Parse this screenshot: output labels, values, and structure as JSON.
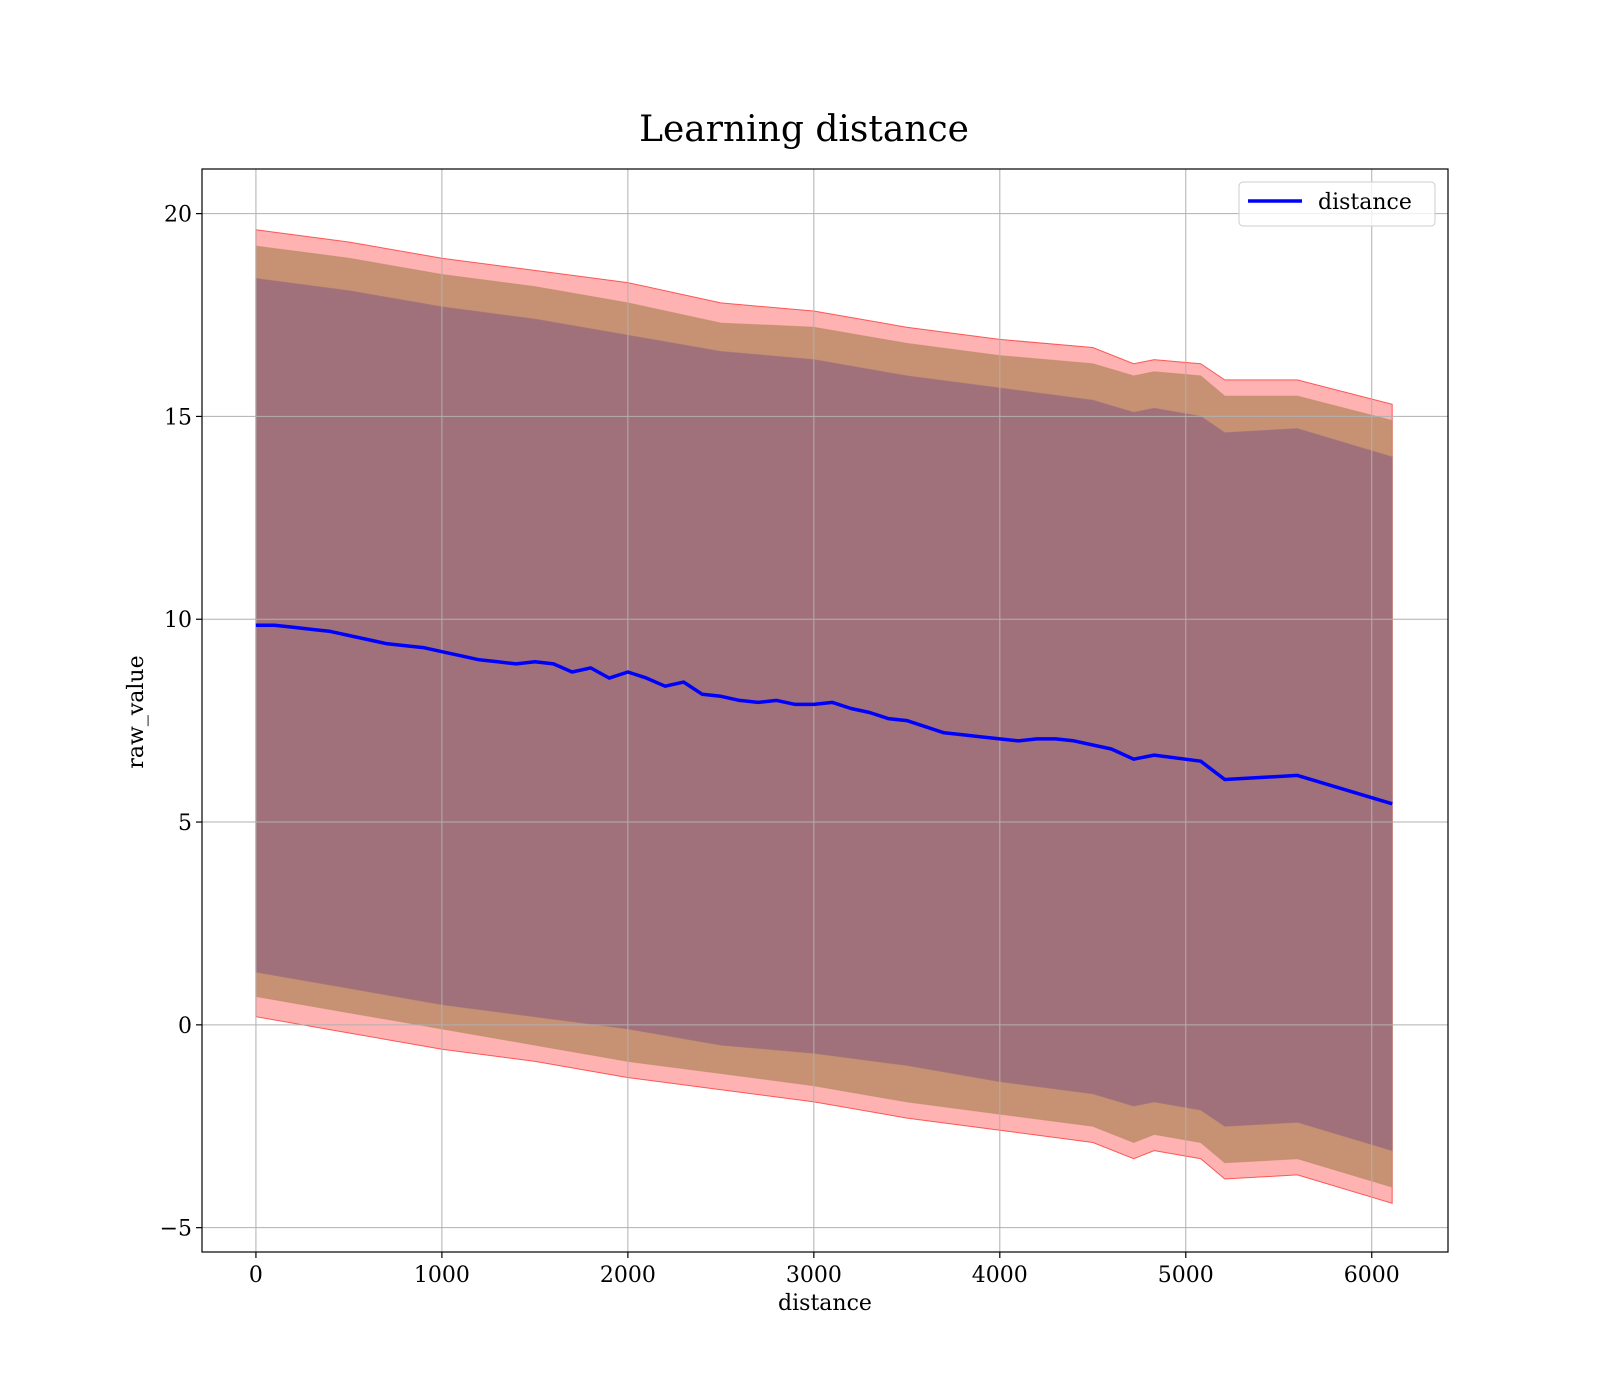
{
  "chart_data": {
    "type": "line",
    "title": "Learning distance",
    "xlabel": "distance",
    "ylabel": "raw_value",
    "xlim": [
      -290,
      6410
    ],
    "ylim": [
      -5.6,
      21.1
    ],
    "xticks": [
      0,
      1000,
      2000,
      3000,
      4000,
      5000,
      6000
    ],
    "yticks": [
      -5,
      0,
      5,
      10,
      15,
      20
    ],
    "grid": true,
    "legend_position": "top-right",
    "legend": [
      {
        "label": "distance",
        "color": "#0000ff"
      }
    ],
    "series": [
      {
        "name": "distance",
        "color": "#0000ff",
        "x": [
          0,
          100,
          200,
          300,
          400,
          500,
          600,
          700,
          800,
          900,
          1000,
          1100,
          1200,
          1300,
          1400,
          1500,
          1600,
          1700,
          1800,
          1900,
          2000,
          2100,
          2200,
          2300,
          2400,
          2500,
          2600,
          2700,
          2800,
          2900,
          3000,
          3100,
          3200,
          3300,
          3400,
          3500,
          3600,
          3700,
          3800,
          3900,
          4000,
          4100,
          4200,
          4300,
          4400,
          4500,
          4600,
          4720,
          4830,
          5080,
          5210,
          5600,
          6110
        ],
        "y": [
          9.85,
          9.85,
          9.8,
          9.75,
          9.7,
          9.6,
          9.5,
          9.4,
          9.35,
          9.3,
          9.2,
          9.1,
          9.0,
          8.95,
          8.9,
          8.95,
          8.9,
          8.7,
          8.8,
          8.55,
          8.7,
          8.55,
          8.35,
          8.45,
          8.15,
          8.1,
          8.0,
          7.95,
          8.0,
          7.9,
          7.9,
          7.95,
          7.8,
          7.7,
          7.55,
          7.5,
          7.35,
          7.2,
          7.15,
          7.1,
          7.05,
          7.0,
          7.05,
          7.05,
          7.0,
          6.9,
          6.8,
          6.55,
          6.65,
          6.5,
          6.05,
          6.15,
          5.45
        ]
      }
    ],
    "bands": [
      {
        "color": "#ff0000",
        "opacity": 0.3,
        "x": [
          0,
          500,
          1000,
          1500,
          2000,
          2500,
          3000,
          3500,
          4000,
          4500,
          4720,
          4830,
          5080,
          5210,
          5600,
          6110
        ],
        "lower": [
          0.2,
          -0.2,
          -0.6,
          -0.9,
          -1.3,
          -1.6,
          -1.9,
          -2.3,
          -2.6,
          -2.9,
          -3.3,
          -3.1,
          -3.3,
          -3.8,
          -3.7,
          -4.4
        ],
        "upper": [
          19.6,
          19.3,
          18.9,
          18.6,
          18.3,
          17.8,
          17.6,
          17.2,
          16.9,
          16.7,
          16.3,
          16.4,
          16.3,
          15.9,
          15.9,
          15.3
        ]
      },
      {
        "color": "#bd8c68",
        "opacity": 0.85,
        "x": [
          0,
          500,
          1000,
          1500,
          2000,
          2500,
          3000,
          3500,
          4000,
          4500,
          4720,
          4830,
          5080,
          5210,
          5600,
          6110
        ],
        "lower": [
          0.7,
          0.3,
          -0.1,
          -0.5,
          -0.9,
          -1.2,
          -1.5,
          -1.9,
          -2.2,
          -2.5,
          -2.9,
          -2.7,
          -2.9,
          -3.4,
          -3.3,
          -4.0
        ],
        "upper": [
          19.2,
          18.9,
          18.5,
          18.2,
          17.8,
          17.3,
          17.2,
          16.8,
          16.5,
          16.3,
          16.0,
          16.1,
          16.0,
          15.5,
          15.5,
          14.9
        ]
      },
      {
        "color": "#a0717a",
        "opacity": 1.0,
        "x": [
          0,
          500,
          1000,
          1500,
          2000,
          2500,
          3000,
          3500,
          4000,
          4500,
          4720,
          4830,
          5080,
          5210,
          5600,
          6110
        ],
        "lower": [
          1.3,
          0.9,
          0.5,
          0.2,
          -0.1,
          -0.5,
          -0.7,
          -1.0,
          -1.4,
          -1.7,
          -2.0,
          -1.9,
          -2.1,
          -2.5,
          -2.4,
          -3.1
        ],
        "upper": [
          18.4,
          18.1,
          17.7,
          17.4,
          17.0,
          16.6,
          16.4,
          16.0,
          15.7,
          15.4,
          15.1,
          15.2,
          15.0,
          14.6,
          14.7,
          14.0
        ]
      }
    ]
  }
}
